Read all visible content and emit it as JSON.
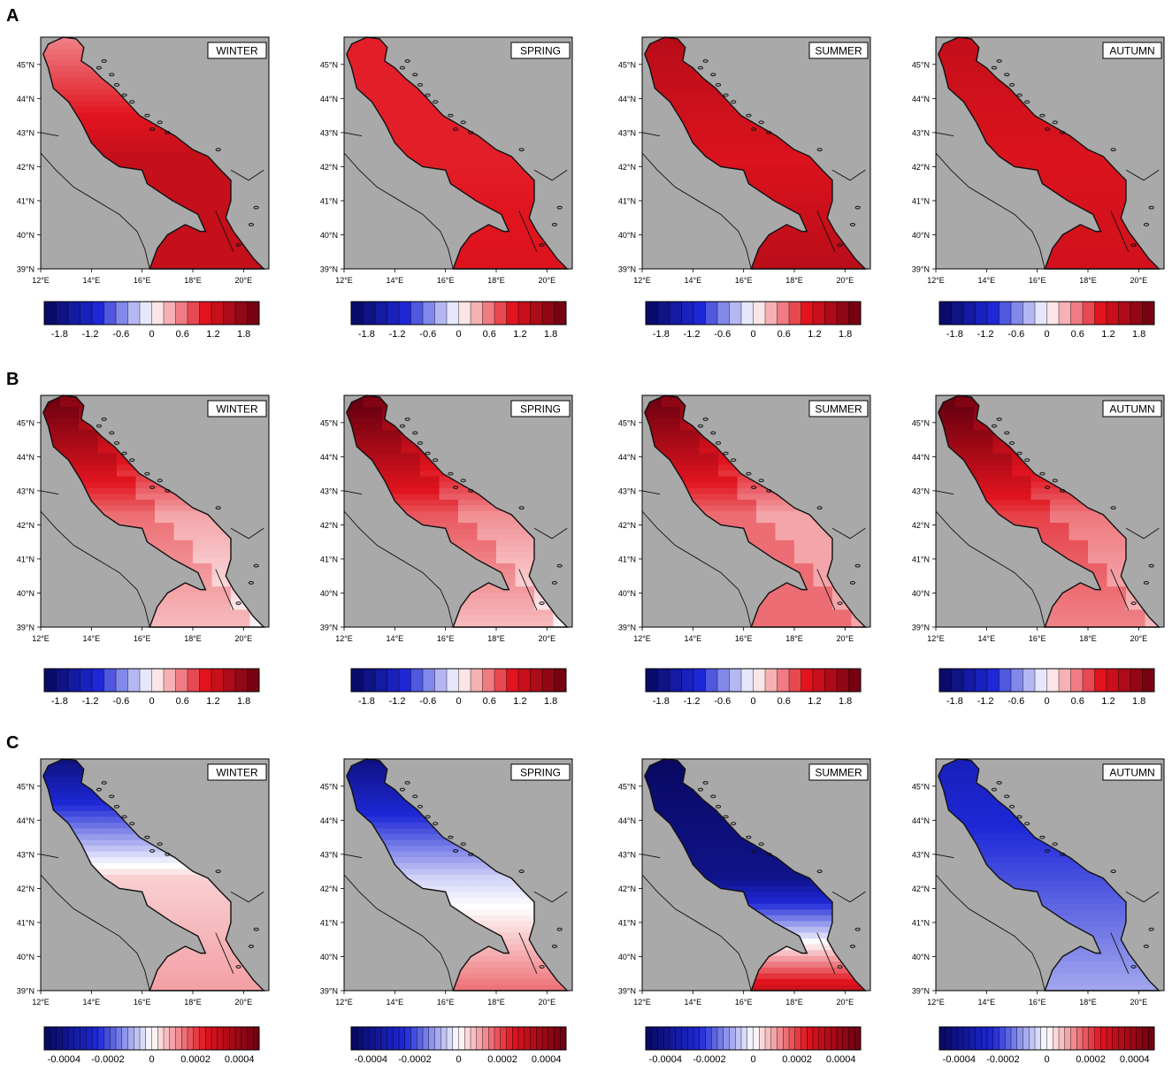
{
  "figure": {
    "rows": [
      {
        "label": "A",
        "colorbar_ticks": [
          "-1.8",
          "-1.2",
          "-0.6",
          "0",
          "0.6",
          "1.2",
          "1.8"
        ],
        "colorbar_levels": 18
      },
      {
        "label": "B",
        "colorbar_ticks": [
          "-1.8",
          "-1.2",
          "-0.6",
          "0",
          "0.6",
          "1.2",
          "1.8"
        ],
        "colorbar_levels": 18
      },
      {
        "label": "C",
        "colorbar_ticks": [
          "-0.0004",
          "-0.0002",
          "0",
          "0.0002",
          "0.0004"
        ],
        "colorbar_levels": 36
      }
    ],
    "seasons": [
      "WINTER",
      "SPRING",
      "SUMMER",
      "AUTUMN"
    ],
    "lat_ticks": [
      "39°N",
      "40°N",
      "41°N",
      "42°N",
      "43°N",
      "44°N",
      "45°N"
    ],
    "lon_ticks": [
      "12°E",
      "14°E",
      "16°E",
      "18°E",
      "20°E"
    ],
    "colors": {
      "land": "#a9a9a9",
      "coast": "#111111",
      "cmap_low": "#08085e",
      "cmap_mid": "#ffffff",
      "cmap_high": "#6b0010"
    }
  },
  "chart_data": [
    {
      "type": "heatmap",
      "panel": "A",
      "season": "WINTER",
      "xlabel": "",
      "ylabel": "",
      "xlim": [
        12,
        21
      ],
      "ylim": [
        39,
        45.8
      ],
      "colorbar_range": [
        -2.1,
        2.1
      ],
      "pattern": "uniform",
      "sea_values": {
        "north": 0.6,
        "center": 1.3,
        "south": 1.3
      }
    },
    {
      "type": "heatmap",
      "panel": "A",
      "season": "SPRING",
      "xlabel": "",
      "ylabel": "",
      "xlim": [
        12,
        21
      ],
      "ylim": [
        39,
        45.8
      ],
      "colorbar_range": [
        -2.1,
        2.1
      ],
      "pattern": "uniform",
      "sea_values": {
        "north": 1.0,
        "center": 1.0,
        "south": 1.1
      }
    },
    {
      "type": "heatmap",
      "panel": "A",
      "season": "SUMMER",
      "xlabel": "",
      "ylabel": "",
      "xlim": [
        12,
        21
      ],
      "ylim": [
        39,
        45.8
      ],
      "colorbar_range": [
        -2.1,
        2.1
      ],
      "pattern": "uniform",
      "sea_values": {
        "north": 1.4,
        "center": 1.1,
        "south": 1.4
      }
    },
    {
      "type": "heatmap",
      "panel": "A",
      "season": "AUTUMN",
      "xlabel": "",
      "ylabel": "",
      "xlim": [
        12,
        21
      ],
      "ylim": [
        39,
        45.8
      ],
      "colorbar_range": [
        -2.1,
        2.1
      ],
      "pattern": "uniform",
      "sea_values": {
        "north": 1.3,
        "center": 1.1,
        "south": 1.2
      }
    },
    {
      "type": "heatmap",
      "panel": "B",
      "season": "WINTER",
      "xlabel": "",
      "ylabel": "",
      "xlim": [
        12,
        21
      ],
      "ylim": [
        39,
        45.8
      ],
      "colorbar_range": [
        -2.1,
        2.1
      ],
      "pattern": "gradient",
      "sea_values": {
        "north": 1.8,
        "center": 0.4,
        "south": 0.05
      }
    },
    {
      "type": "heatmap",
      "panel": "B",
      "season": "SPRING",
      "xlabel": "",
      "ylabel": "",
      "xlim": [
        12,
        21
      ],
      "ylim": [
        39,
        45.8
      ],
      "colorbar_range": [
        -2.1,
        2.1
      ],
      "pattern": "gradient",
      "sea_values": {
        "north": 1.9,
        "center": 0.5,
        "south": 0.05
      }
    },
    {
      "type": "heatmap",
      "panel": "B",
      "season": "SUMMER",
      "xlabel": "",
      "ylabel": "",
      "xlim": [
        12,
        21
      ],
      "ylim": [
        39,
        45.8
      ],
      "colorbar_range": [
        -2.1,
        2.1
      ],
      "pattern": "gradient",
      "sea_values": {
        "north": 1.8,
        "center": 0.4,
        "south": 0.4
      }
    },
    {
      "type": "heatmap",
      "panel": "B",
      "season": "AUTUMN",
      "xlabel": "",
      "ylabel": "",
      "xlim": [
        12,
        21
      ],
      "ylim": [
        39,
        45.8
      ],
      "colorbar_range": [
        -2.1,
        2.1
      ],
      "pattern": "gradient",
      "sea_values": {
        "north": 1.9,
        "center": 0.6,
        "south": 0.3
      }
    },
    {
      "type": "heatmap",
      "panel": "C",
      "season": "WINTER",
      "xlabel": "",
      "ylabel": "",
      "xlim": [
        12,
        21
      ],
      "ylim": [
        39,
        45.8
      ],
      "colorbar_range": [
        -0.00049,
        0.00049
      ],
      "pattern": "mixed",
      "sea_values": {
        "north": -0.0004,
        "center": 5e-05,
        "south": 0.0001
      }
    },
    {
      "type": "heatmap",
      "panel": "C",
      "season": "SPRING",
      "xlabel": "",
      "ylabel": "",
      "xlim": [
        12,
        21
      ],
      "ylim": [
        39,
        45.8
      ],
      "colorbar_range": [
        -0.00049,
        0.00049
      ],
      "pattern": "mixed",
      "sea_values": {
        "north": -0.0004,
        "center": -5e-05,
        "south": 0.00015
      }
    },
    {
      "type": "heatmap",
      "panel": "C",
      "season": "SUMMER",
      "xlabel": "",
      "ylabel": "",
      "xlim": [
        12,
        21
      ],
      "ylim": [
        39,
        45.8
      ],
      "colorbar_range": [
        -0.00049,
        0.00049
      ],
      "pattern": "mixed",
      "sea_values": {
        "north": -0.00048,
        "center": -0.0004,
        "south": 0.0003
      }
    },
    {
      "type": "heatmap",
      "panel": "C",
      "season": "AUTUMN",
      "xlabel": "",
      "ylabel": "",
      "xlim": [
        12,
        21
      ],
      "ylim": [
        39,
        45.8
      ],
      "colorbar_range": [
        -0.00049,
        0.00049
      ],
      "pattern": "mixed",
      "sea_values": {
        "north": -0.0003,
        "center": -0.0002,
        "south": -0.0001
      }
    }
  ]
}
